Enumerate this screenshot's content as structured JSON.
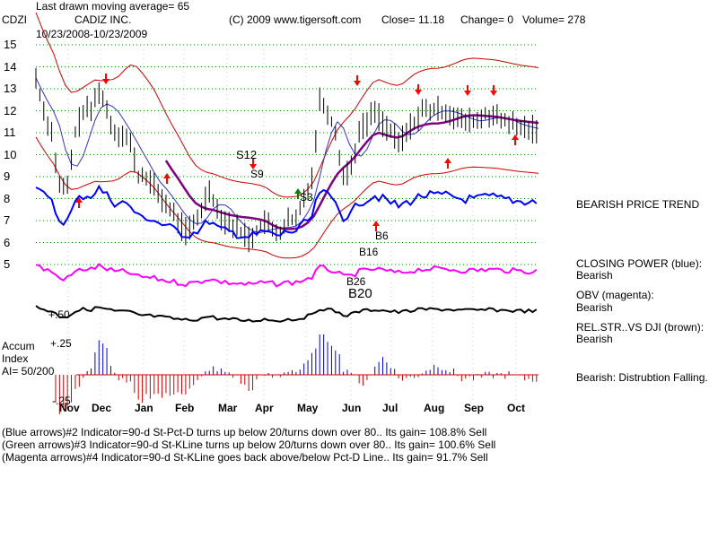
{
  "header": {
    "moving_avg": "Last drawn moving average= 65",
    "symbol": "CDZI",
    "company": "CADIZ INC.",
    "copyright": "(C) 2009 www.tigersoft.com",
    "close": "Close=  11.18",
    "change": "Change= 0",
    "volume": "Volume= 278",
    "date_range": "10/23/2008-10/23/2009"
  },
  "colors": {
    "price": "#000000",
    "closing_power": "#0000ff",
    "obv": "#ff00ff",
    "rel_str": "#000000",
    "bands": "#cc0000",
    "ma": "#800080",
    "grid": "#008000",
    "accum_pos": "#0000cc",
    "accum_neg": "#cc0000"
  },
  "annotations": {
    "s12": "S12",
    "s9": "S9",
    "s3": "S3",
    "b6": "B6",
    "b16": "B16",
    "b26": "B26",
    "b20": "B20"
  },
  "sidebar": {
    "trend": "BEARISH PRICE TREND",
    "cp_label": "CLOSING POWER (blue):",
    "cp_value": "Bearish",
    "obv_label": "OBV (magenta):",
    "obv_value": "Bearish",
    "rel_label": "REL.STR..VS DJI (brown):",
    "rel_value": "Bearish",
    "accum_note": "Bearish: Distrubtion Falling."
  },
  "accum_panel": {
    "title1": "Accum",
    "title2": "Index",
    "ai": "AI= 50/200",
    "plus25": "+.25",
    "minus25": "-.25",
    "plus50": "+.50"
  },
  "footer": {
    "line1": "(Blue arrows)#2 Indicator=90-d St-Pct-D turns up below 20/turns down over 80.. Its gain= 108.8% Sell",
    "line2": "(Green arrows)#3 Indicator=90-d St-KLine turns up below 20/turns down over 80.. Its gain= 100.6% Sell",
    "line3": "(Magenta arrows)#4 Indicator=90-d St-KLine goes back above/below Pct-D Line.. Its gain= 91.7% Sell"
  },
  "chart_data": {
    "type": "line",
    "title": "CADIZ INC.",
    "xlabel": "",
    "ylabel": "",
    "ylim": [
      5,
      15
    ],
    "ytick_labels": [
      "15",
      "14",
      "13",
      "12",
      "11",
      "10",
      "9",
      "8",
      "7",
      "6",
      "5"
    ],
    "x_tick_labels": [
      "Nov",
      "Dec",
      "Jan",
      "Feb",
      "Mar",
      "Apr",
      "May",
      "Jun",
      "Jul",
      "Aug",
      "Sep",
      "Oct"
    ],
    "grid": true,
    "series": [
      {
        "x": [
          0,
          4,
          8,
          12,
          16,
          20,
          24,
          28,
          32,
          36,
          40,
          44,
          48,
          52,
          56,
          60,
          64,
          68,
          72,
          76,
          80,
          84,
          88,
          92,
          96,
          100,
          104,
          108,
          112,
          116,
          120,
          124,
          128,
          132,
          136,
          140,
          144,
          148,
          152,
          156,
          160,
          164,
          168,
          172,
          176,
          180,
          184,
          188,
          192,
          196,
          200,
          204,
          208,
          212,
          216,
          220,
          224,
          228,
          232,
          236,
          240,
          244,
          248,
          252
        ],
        "values": [
          13.5,
          12,
          11,
          8.5,
          8.5,
          11,
          12,
          12,
          13,
          12,
          11,
          11,
          10.5,
          9,
          9,
          8.5,
          8,
          7.5,
          7,
          6.5,
          6.8,
          7.5,
          8.5,
          7.5,
          7,
          6.8,
          6.5,
          6.2,
          6.5,
          7,
          6.5,
          6.5,
          7,
          7,
          8,
          9,
          12.5,
          12,
          11,
          9,
          9.5,
          11,
          11.5,
          12,
          11.5,
          11,
          10.5,
          11,
          11.5,
          12,
          12,
          12,
          12,
          11.8,
          11.5,
          11.5,
          11.5,
          11.8,
          11.8,
          11.5,
          11.5,
          11.2,
          11.2,
          11.18
        ]
      }
    ]
  }
}
